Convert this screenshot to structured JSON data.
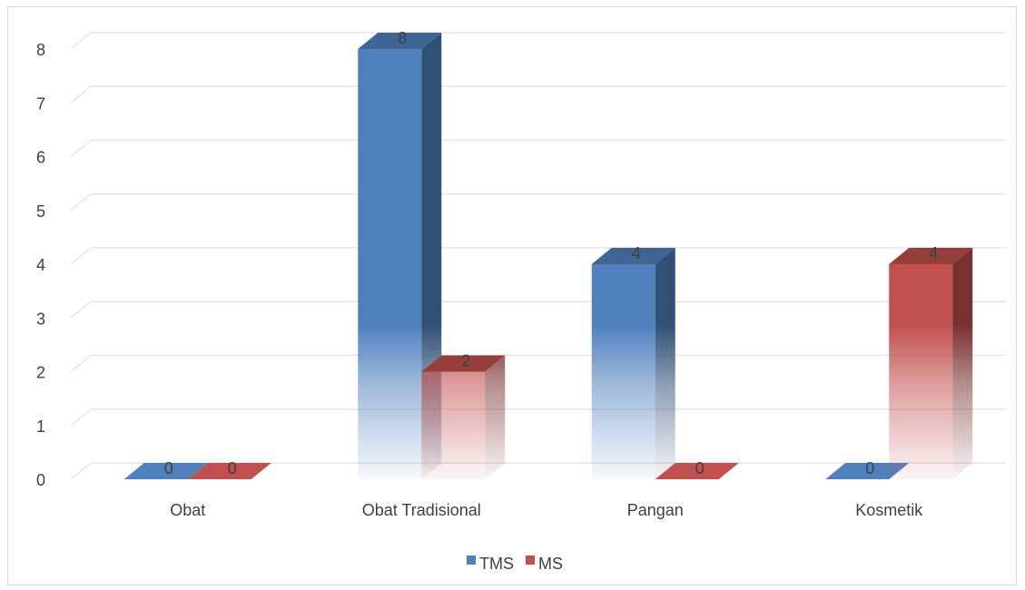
{
  "chart_data": {
    "type": "bar",
    "categories": [
      "Obat",
      "Obat Tradisional",
      "Pangan",
      "Kosmetik"
    ],
    "series": [
      {
        "name": "TMS",
        "values": [
          0,
          8,
          4,
          0
        ],
        "color": "#4f81bd"
      },
      {
        "name": "MS",
        "values": [
          0,
          2,
          0,
          4
        ],
        "color": "#c0504d"
      }
    ],
    "title": "",
    "xlabel": "",
    "ylabel": "",
    "ylim": [
      0,
      8
    ],
    "yticks": [
      0,
      1,
      2,
      3,
      4,
      5,
      6,
      7,
      8
    ],
    "grid": true,
    "legend": "bottom",
    "style": "3d-clustered-column"
  }
}
